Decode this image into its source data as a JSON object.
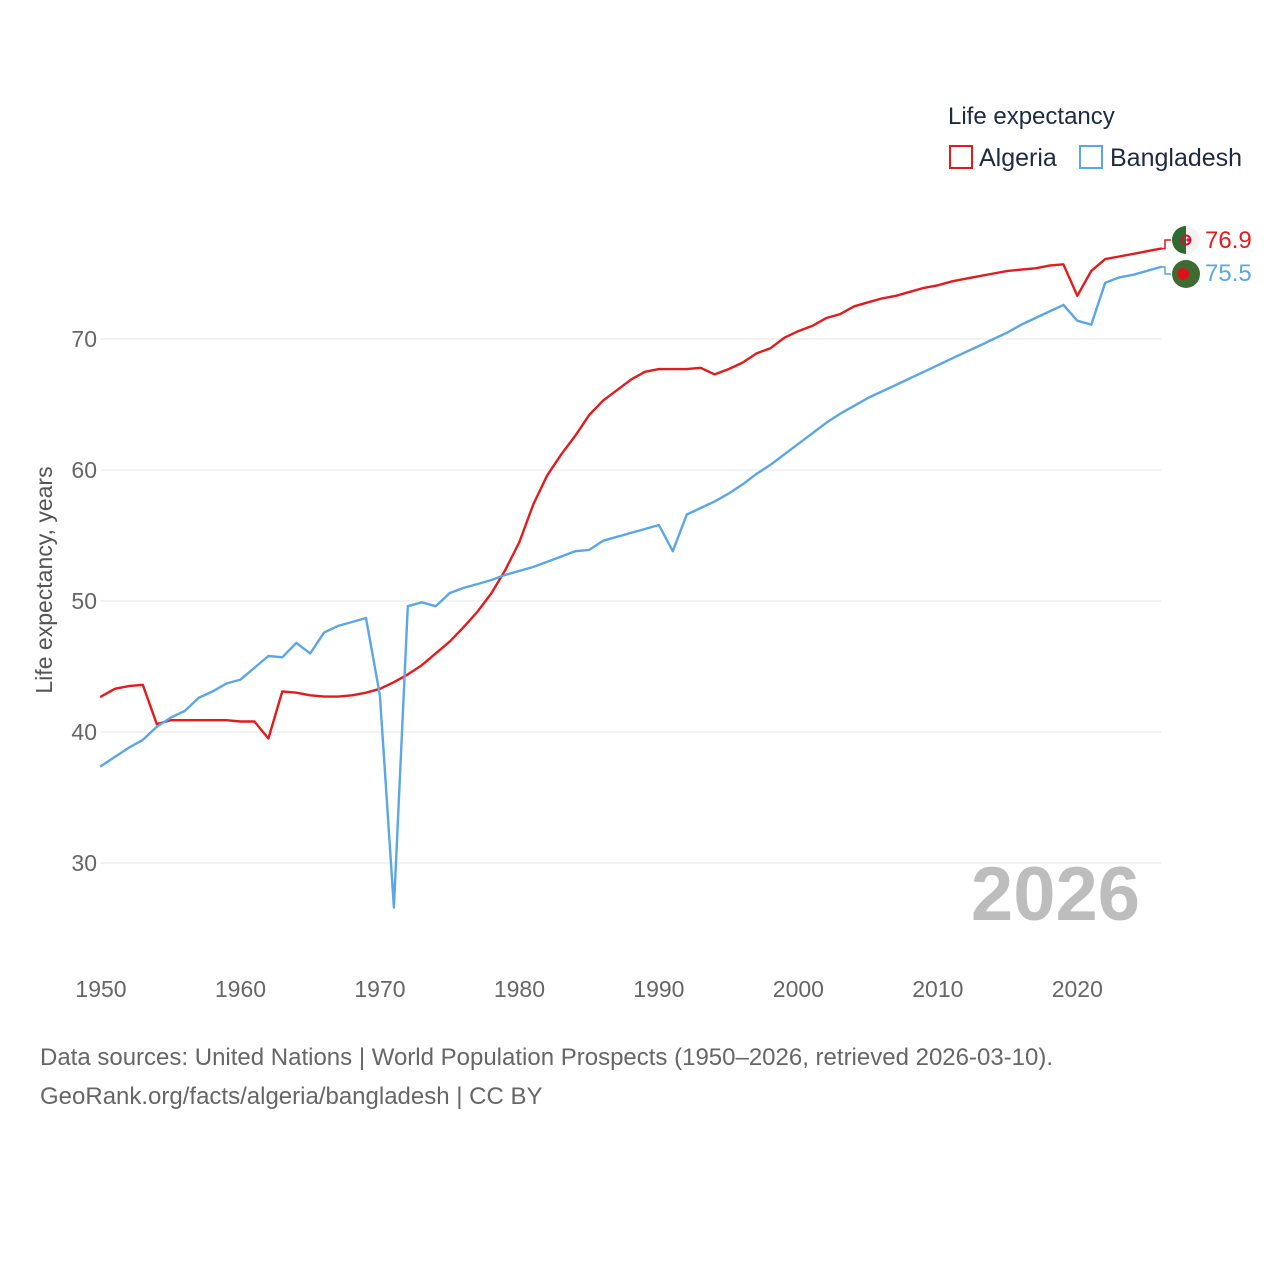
{
  "chart_data": {
    "type": "line",
    "legend": {
      "title": "Life expectancy",
      "position": "top-right"
    },
    "ylabel": "Life expectancy, years",
    "xlabel": "",
    "xlim": [
      1950,
      2026
    ],
    "ylim": [
      23,
      80
    ],
    "x_ticks": [
      1950,
      1960,
      1970,
      1980,
      1990,
      2000,
      2010,
      2020
    ],
    "y_ticks": [
      30,
      40,
      50,
      60,
      70
    ],
    "grid": true,
    "year_label": "2026",
    "x": [
      1950,
      1951,
      1952,
      1953,
      1954,
      1955,
      1956,
      1957,
      1958,
      1959,
      1960,
      1961,
      1962,
      1963,
      1964,
      1965,
      1966,
      1967,
      1968,
      1969,
      1970,
      1971,
      1972,
      1973,
      1974,
      1975,
      1976,
      1977,
      1978,
      1979,
      1980,
      1981,
      1982,
      1983,
      1984,
      1985,
      1986,
      1987,
      1988,
      1989,
      1990,
      1991,
      1992,
      1993,
      1994,
      1995,
      1996,
      1997,
      1998,
      1999,
      2000,
      2001,
      2002,
      2003,
      2004,
      2005,
      2006,
      2007,
      2008,
      2009,
      2010,
      2011,
      2012,
      2013,
      2014,
      2015,
      2016,
      2017,
      2018,
      2019,
      2020,
      2021,
      2022,
      2023,
      2024,
      2025,
      2026
    ],
    "series": [
      {
        "name": "Algeria",
        "color": "#e41a1c",
        "end_value": "76.9",
        "values": [
          42.7,
          43.3,
          43.5,
          43.6,
          40.6,
          40.9,
          40.9,
          40.9,
          40.9,
          40.9,
          40.8,
          40.8,
          39.5,
          43.1,
          43.0,
          42.8,
          42.7,
          42.7,
          42.8,
          43.0,
          43.3,
          43.8,
          44.4,
          45.1,
          46.0,
          46.9,
          48.0,
          49.2,
          50.6,
          52.4,
          54.5,
          57.4,
          59.6,
          61.2,
          62.6,
          64.2,
          65.3,
          66.1,
          66.9,
          67.5,
          67.7,
          67.7,
          67.7,
          67.8,
          67.3,
          67.7,
          68.2,
          68.9,
          69.3,
          70.1,
          70.6,
          71.0,
          71.6,
          71.9,
          72.5,
          72.8,
          73.1,
          73.3,
          73.6,
          73.9,
          74.1,
          74.4,
          74.6,
          74.8,
          75.0,
          75.2,
          75.3,
          75.4,
          75.6,
          75.7,
          73.3,
          75.2,
          76.1,
          76.3,
          76.5,
          76.7,
          76.9
        ]
      },
      {
        "name": "Bangladesh",
        "color": "#5aa6e6",
        "end_value": "75.5",
        "values": [
          37.4,
          38.1,
          38.8,
          39.4,
          40.4,
          41.1,
          41.6,
          42.6,
          43.1,
          43.7,
          44.0,
          44.9,
          45.8,
          45.7,
          46.8,
          46.0,
          47.6,
          48.1,
          48.4,
          48.7,
          42.8,
          26.6,
          49.6,
          49.9,
          49.6,
          50.6,
          51.0,
          51.3,
          51.6,
          52.0,
          52.3,
          52.6,
          53.0,
          53.4,
          53.8,
          53.9,
          54.6,
          54.9,
          55.2,
          55.5,
          55.8,
          53.8,
          56.6,
          57.1,
          57.6,
          58.2,
          58.9,
          59.7,
          60.4,
          61.2,
          62.0,
          62.8,
          63.6,
          64.3,
          64.9,
          65.5,
          66.0,
          66.5,
          67.0,
          67.5,
          68.0,
          68.5,
          69.0,
          69.5,
          70.0,
          70.5,
          71.1,
          71.6,
          72.1,
          72.6,
          71.4,
          71.1,
          74.3,
          74.7,
          74.9,
          75.2,
          75.5
        ]
      }
    ]
  },
  "footer": {
    "line1": "Data sources: United Nations | World Population Prospects (1950–2026, retrieved 2026-03-10).",
    "line2": "GeoRank.org/facts/algeria/bangladesh | CC BY"
  }
}
